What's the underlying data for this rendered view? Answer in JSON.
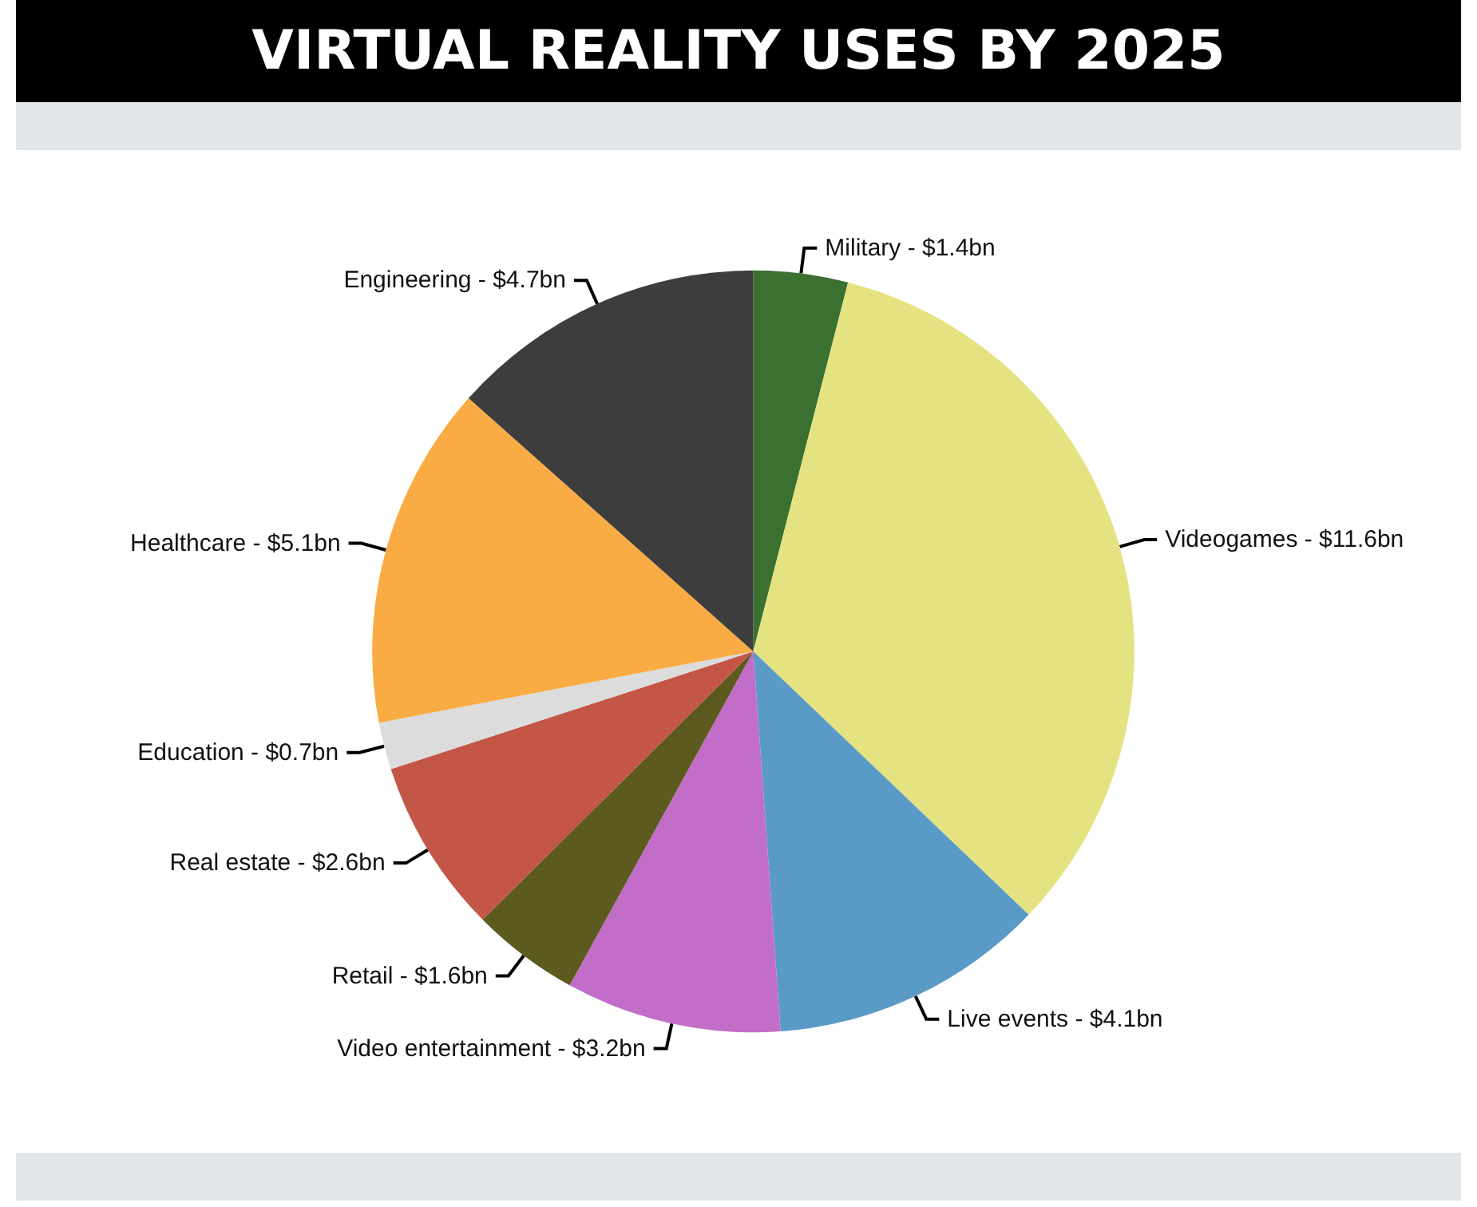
{
  "chart_data": {
    "type": "pie",
    "title": "VIRTUAL REALITY USES BY 2025",
    "categories": [
      "Military",
      "Videogames",
      "Live events",
      "Video entertainment",
      "Retail",
      "Real estate",
      "Education",
      "Healthcare",
      "Engineering"
    ],
    "values": [
      1.4,
      11.6,
      4.1,
      3.2,
      1.6,
      2.6,
      0.7,
      5.1,
      4.7
    ],
    "value_labels": [
      "$1.4bn",
      "$11.6bn",
      "$4.1bn",
      "$3.2bn",
      "$1.6bn",
      "$2.6bn",
      "$0.7bn",
      "$5.1bn",
      "$4.7bn"
    ],
    "colors": [
      "#3a7030",
      "#e5e381",
      "#5a9ac6",
      "#c26ec8",
      "#5c5a1e",
      "#c35647",
      "#dcdcdc",
      "#f9ac44",
      "#3d3d3d"
    ],
    "legend": false
  }
}
